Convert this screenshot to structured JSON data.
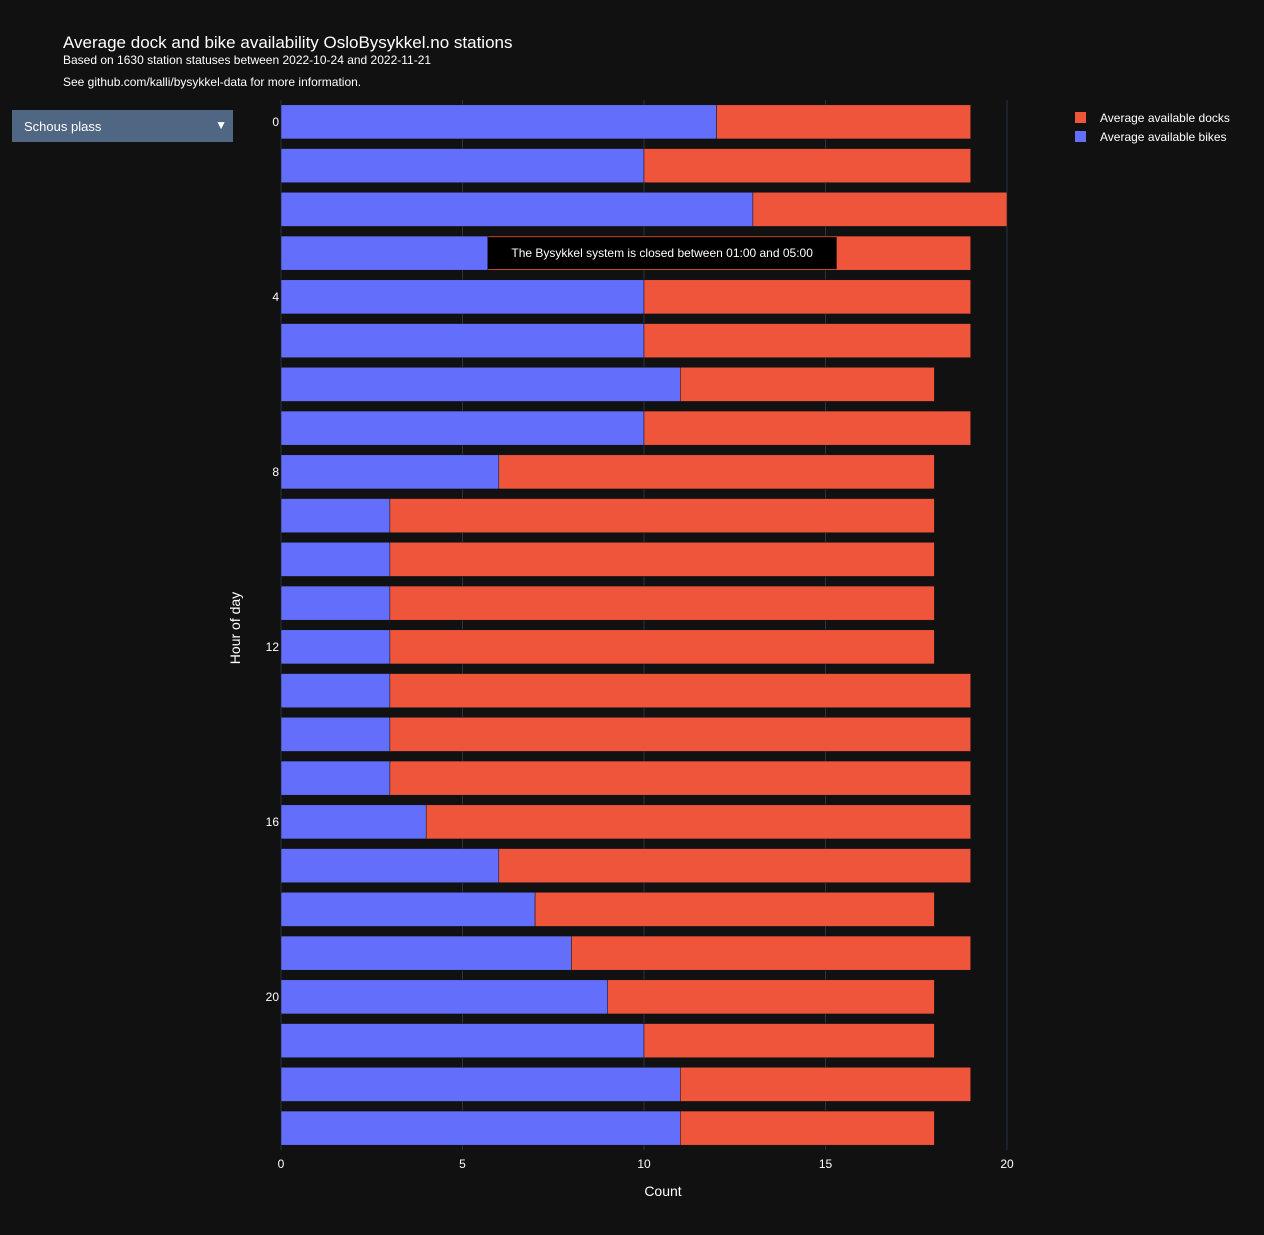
{
  "title": "Average dock and bike availability OsloBysykkel.no stations",
  "subtitle": "Based on 1630 station statuses between 2022-10-24 and 2022-11-21",
  "subtitle2": "See github.com/kalli/bysykkel-data for more information.",
  "dropdown": {
    "selected": "Schous plass"
  },
  "colors": {
    "bikes": "#636efa",
    "docks": "#ef553b",
    "background": "#111111",
    "grid": "#283442"
  },
  "icons": {
    "dropdown": "triangle-down-icon"
  },
  "chart_data": {
    "type": "bar",
    "orientation": "horizontal",
    "barmode": "stack",
    "categories": [
      0,
      1,
      2,
      3,
      4,
      5,
      6,
      7,
      8,
      9,
      10,
      11,
      12,
      13,
      14,
      15,
      16,
      17,
      18,
      19,
      20,
      21,
      22,
      23
    ],
    "tick_labels": [
      "0",
      "4",
      "8",
      "12",
      "16",
      "20"
    ],
    "tick_values": [
      0,
      4,
      8,
      12,
      16,
      20
    ],
    "series": [
      {
        "name": "Average available bikes",
        "color": "#636efa",
        "values": [
          12,
          10,
          13,
          5.7,
          10,
          10,
          11,
          10,
          6,
          3,
          3,
          3,
          3,
          3,
          3,
          3,
          4,
          6,
          7,
          8,
          9,
          10,
          11,
          11
        ]
      },
      {
        "name": "Average available docks",
        "color": "#ef553b",
        "values": [
          7,
          9,
          7,
          13.3,
          9,
          9,
          7,
          9,
          12,
          15,
          15,
          15,
          15,
          16,
          16,
          16,
          15,
          13,
          11,
          11,
          9,
          8,
          8,
          7
        ]
      }
    ],
    "xlabel": "Count",
    "ylabel": "Hour of day",
    "xlim": [
      0,
      20
    ],
    "xticks": [
      0,
      5,
      10,
      15,
      20
    ],
    "grid": true,
    "legend_position": "top-right",
    "annotation": {
      "text": "The Bysykkel system is closed between 01:00 and 05:00",
      "x": 10.5,
      "y": 3
    }
  }
}
